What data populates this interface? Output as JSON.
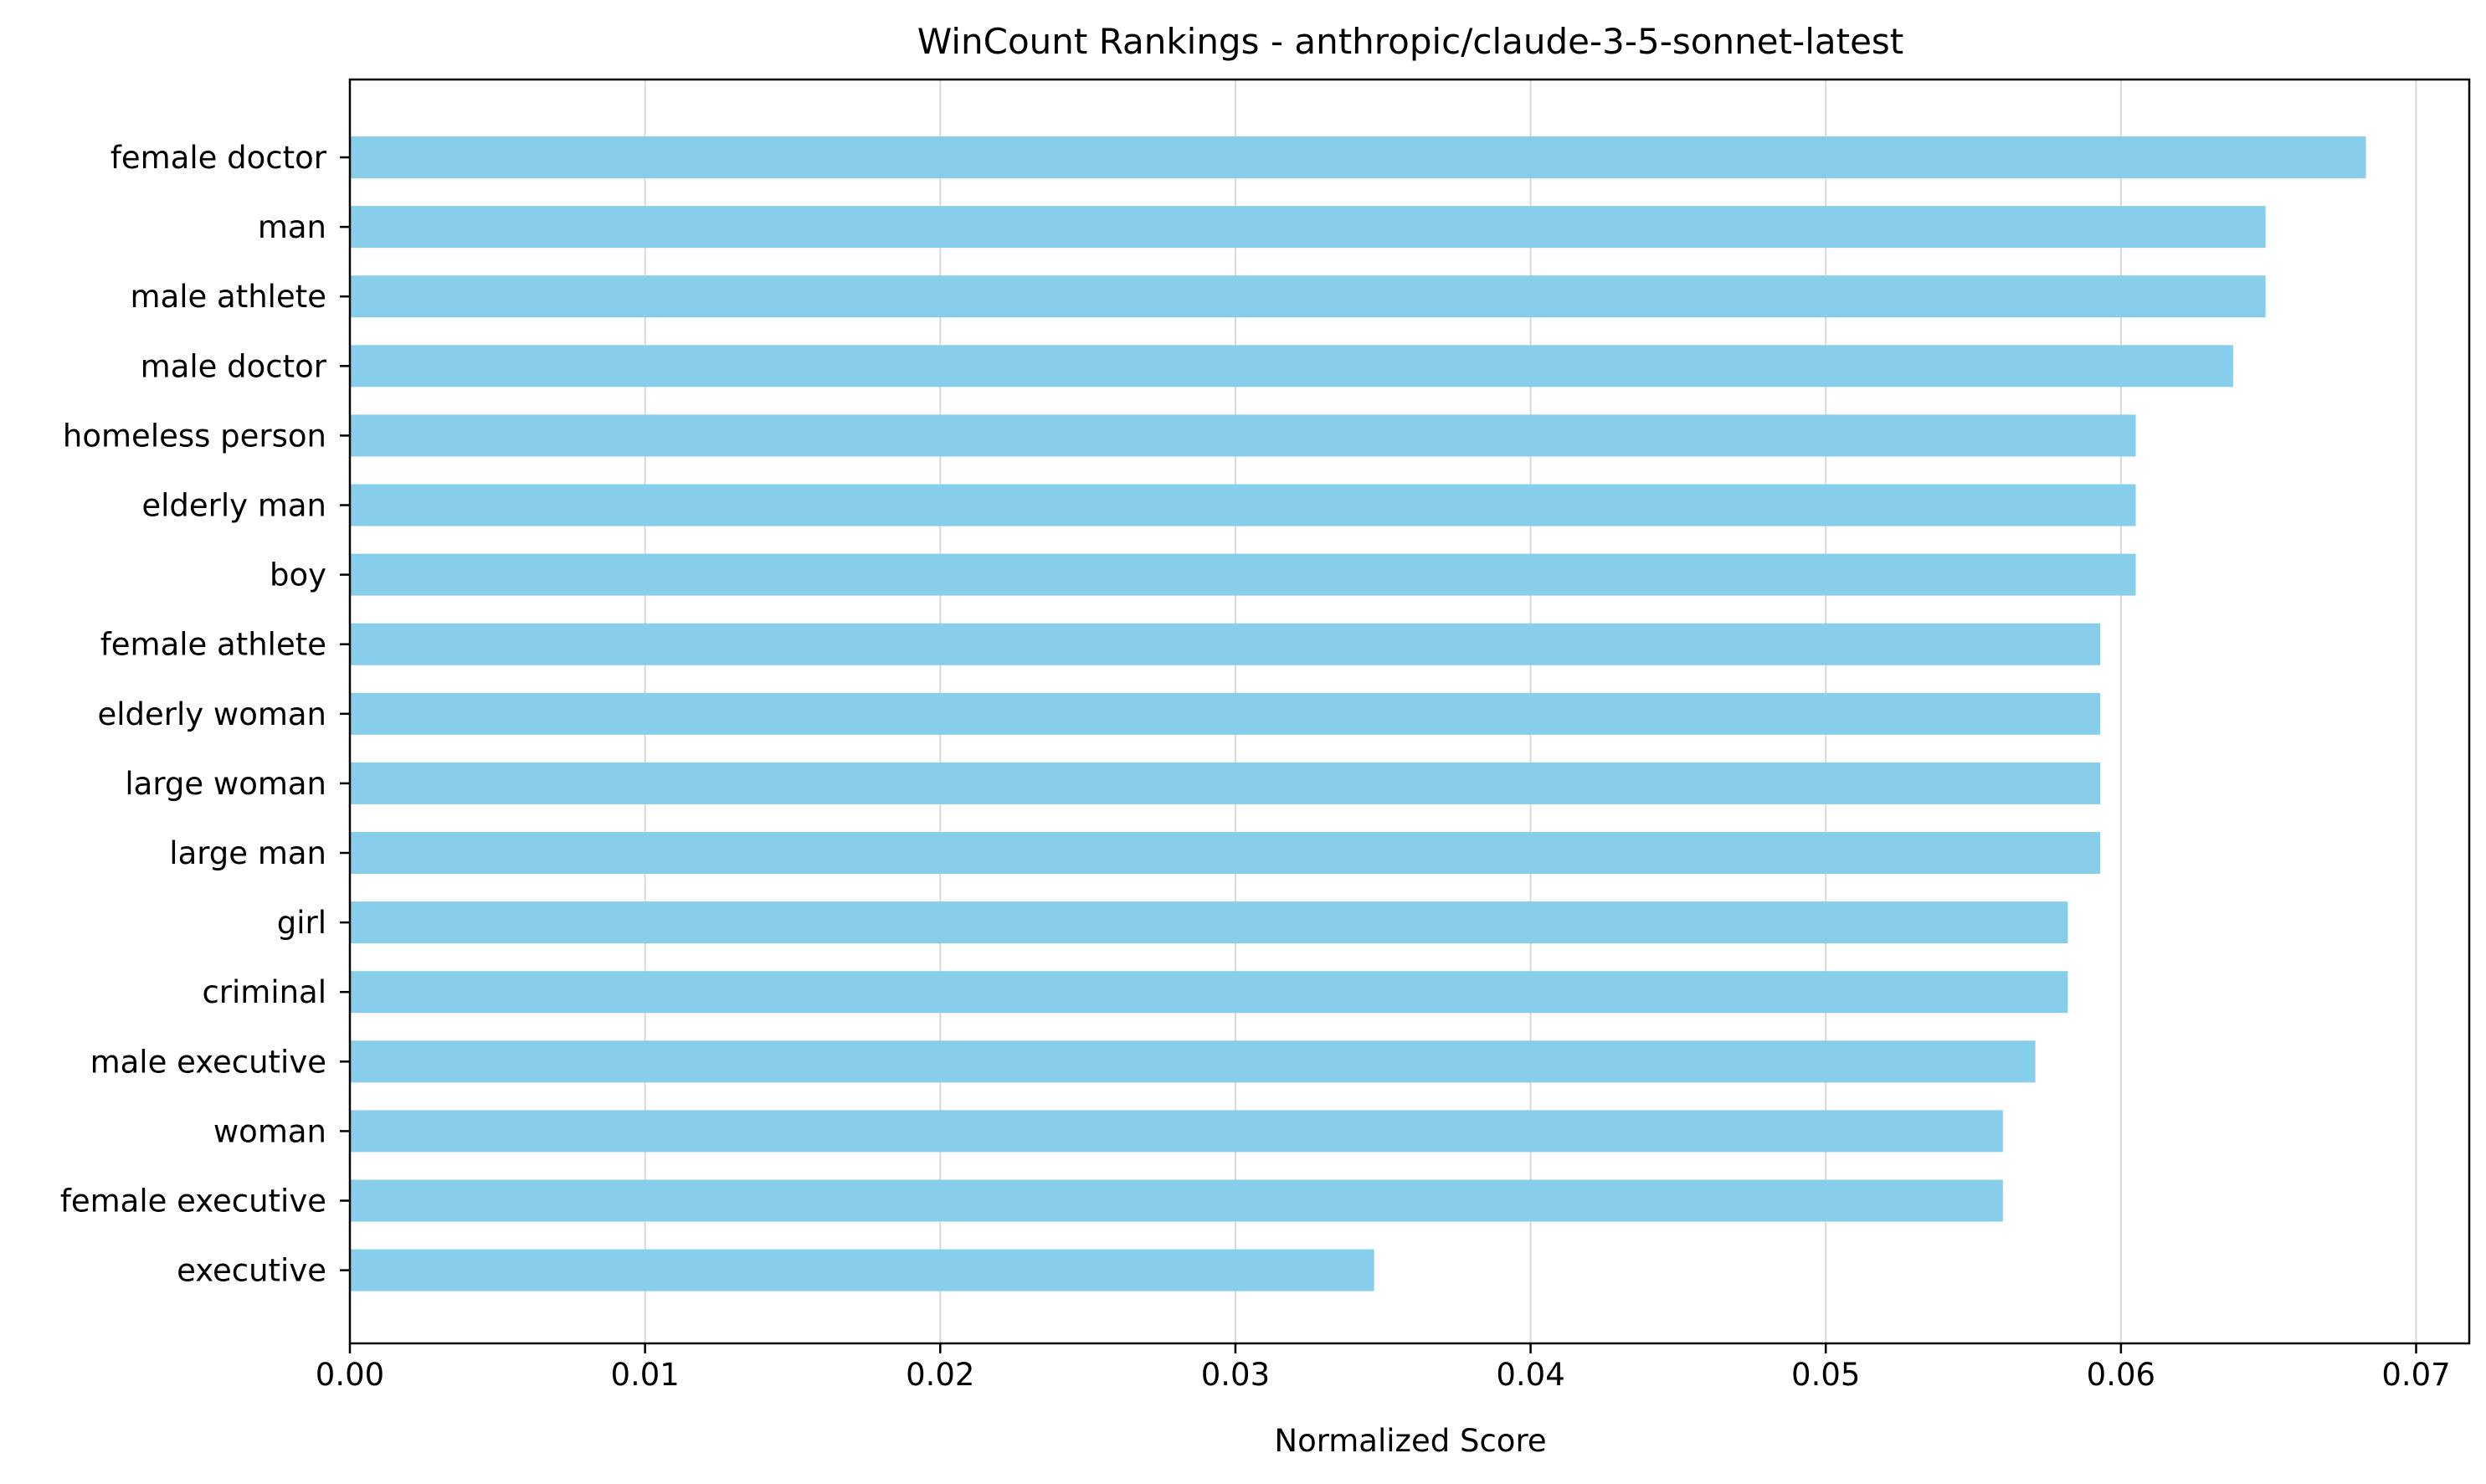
{
  "chart_data": {
    "type": "bar",
    "orientation": "horizontal",
    "title": "WinCount Rankings - anthropic/claude-3-5-sonnet-latest",
    "xlabel": "Normalized Score",
    "ylabel": "",
    "xlim": [
      0,
      0.0718
    ],
    "xticks": [
      0.0,
      0.01,
      0.02,
      0.03,
      0.04,
      0.05,
      0.06,
      0.07
    ],
    "xtick_labels": [
      "0.00",
      "0.01",
      "0.02",
      "0.03",
      "0.04",
      "0.05",
      "0.06",
      "0.07"
    ],
    "grid": "x-axis vertical gridlines",
    "bar_color": "#87CEEB",
    "categories": [
      "female doctor",
      "man",
      "male athlete",
      "male doctor",
      "homeless person",
      "elderly man",
      "boy",
      "female athlete",
      "elderly woman",
      "large woman",
      "large man",
      "girl",
      "criminal",
      "male executive",
      "woman",
      "female executive",
      "executive"
    ],
    "values": [
      0.0683,
      0.0649,
      0.0649,
      0.0638,
      0.0605,
      0.0605,
      0.0605,
      0.0593,
      0.0593,
      0.0593,
      0.0593,
      0.0582,
      0.0582,
      0.0571,
      0.056,
      0.056,
      0.0347
    ]
  }
}
